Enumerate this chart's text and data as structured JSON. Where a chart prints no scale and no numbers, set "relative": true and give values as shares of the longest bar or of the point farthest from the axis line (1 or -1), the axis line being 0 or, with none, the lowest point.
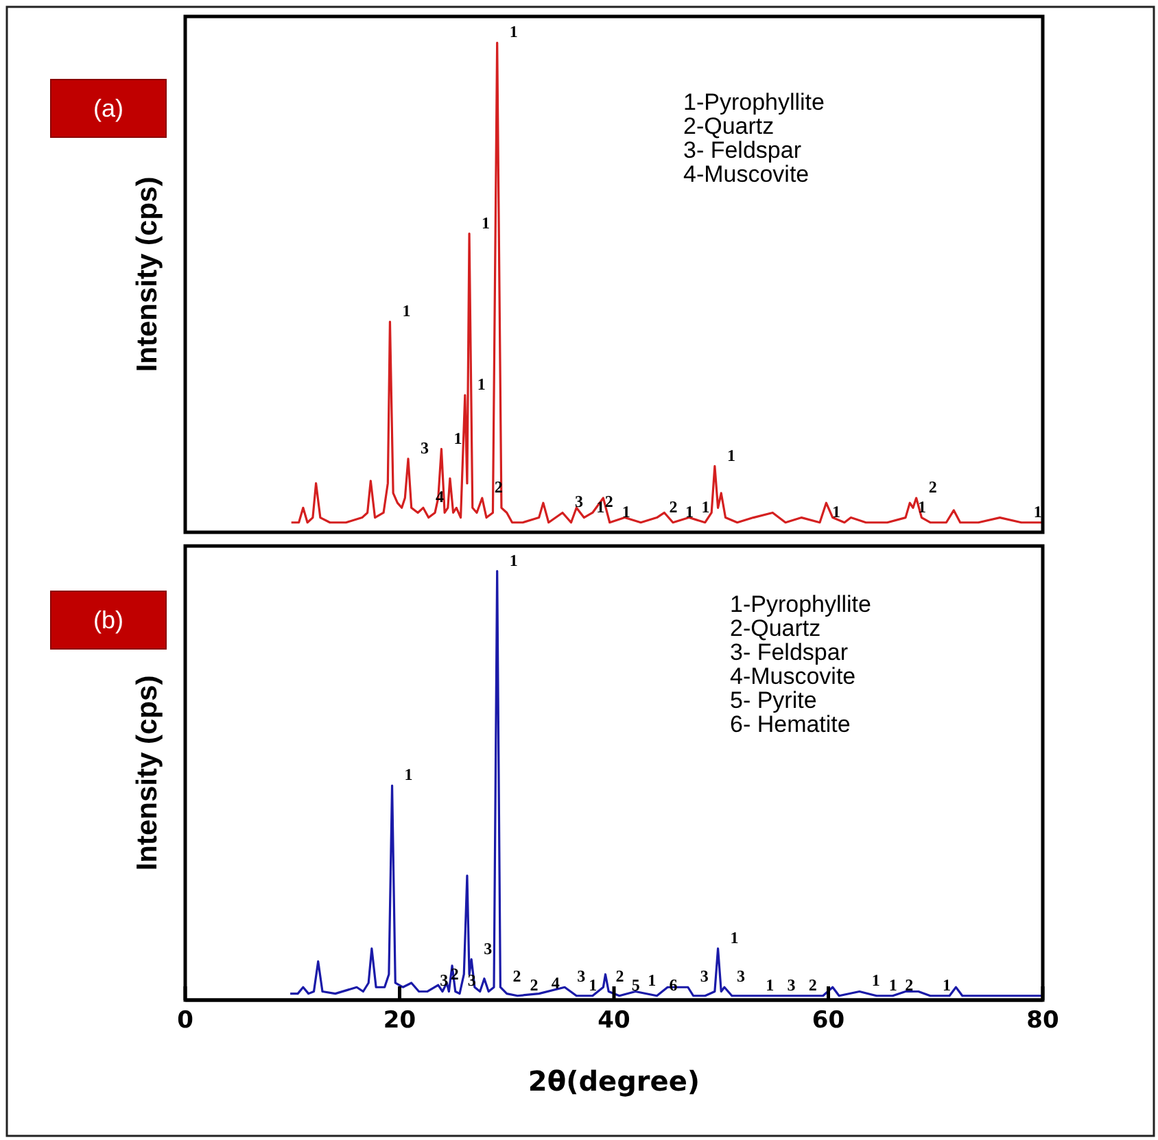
{
  "chart_data": [
    {
      "type": "line",
      "title": "(a)",
      "ylabel": "Intensity (cps)",
      "relative": true,
      "xlim": [
        0,
        80
      ],
      "tick_labels": false,
      "series": [
        {
          "color": "#d42020",
          "x": [
            9.9,
            10.6,
            11.0,
            11.4,
            11.9,
            12.2,
            12.6,
            13.5,
            15.0,
            16.5,
            17.0,
            17.3,
            17.7,
            18.5,
            18.9,
            19.1,
            19.4,
            19.8,
            20.2,
            20.5,
            20.8,
            21.1,
            21.7,
            22.2,
            22.7,
            23.3,
            23.6,
            23.9,
            24.2,
            24.5,
            24.7,
            25.0,
            25.3,
            25.7,
            26.1,
            26.3,
            26.5,
            26.8,
            27.2,
            27.7,
            28.1,
            28.7,
            29.1,
            29.5,
            30.0,
            30.5,
            31.5,
            33.0,
            33.4,
            33.9,
            35.2,
            36.0,
            36.5,
            37.2,
            38.0,
            39.0,
            39.6,
            41.0,
            42.5,
            44.0,
            44.7,
            45.5,
            47.0,
            48.5,
            49.1,
            49.4,
            49.7,
            50.0,
            50.4,
            51.5,
            53.0,
            54.8,
            56.0,
            57.5,
            59.2,
            59.8,
            60.4,
            61.5,
            62.1,
            63.5,
            65.5,
            67.2,
            67.6,
            67.9,
            68.2,
            68.7,
            69.5,
            71.0,
            71.7,
            72.3,
            74.0,
            76.0,
            78.0,
            80.0
          ],
          "values": [
            0.02,
            0.02,
            0.05,
            0.02,
            0.03,
            0.1,
            0.03,
            0.02,
            0.02,
            0.03,
            0.04,
            0.105,
            0.03,
            0.04,
            0.1,
            0.43,
            0.08,
            0.06,
            0.05,
            0.07,
            0.15,
            0.05,
            0.04,
            0.05,
            0.03,
            0.04,
            0.07,
            0.17,
            0.04,
            0.05,
            0.11,
            0.04,
            0.05,
            0.03,
            0.28,
            0.1,
            0.61,
            0.05,
            0.04,
            0.07,
            0.03,
            0.04,
            1.0,
            0.05,
            0.04,
            0.02,
            0.02,
            0.03,
            0.06,
            0.02,
            0.04,
            0.02,
            0.05,
            0.03,
            0.04,
            0.07,
            0.02,
            0.03,
            0.02,
            0.03,
            0.04,
            0.02,
            0.03,
            0.02,
            0.04,
            0.135,
            0.05,
            0.08,
            0.03,
            0.02,
            0.03,
            0.04,
            0.02,
            0.03,
            0.02,
            0.06,
            0.03,
            0.02,
            0.03,
            0.02,
            0.02,
            0.03,
            0.06,
            0.05,
            0.07,
            0.03,
            0.02,
            0.02,
            0.045,
            0.02,
            0.02,
            0.03,
            0.02,
            0.02
          ]
        }
      ],
      "annotations": [
        "1-Pyrophyllite",
        "2-Quartz",
        "3- Feldspar",
        "4-Muscovite",
        {
          "text": "1",
          "x": 29.1,
          "y": 1.0
        },
        {
          "text": "1",
          "x": 26.5,
          "y": 0.61
        },
        {
          "text": "1",
          "x": 19.1,
          "y": 0.43
        },
        {
          "text": "1",
          "x": 23.9,
          "y": 0.17
        },
        {
          "text": "3",
          "x": 20.8,
          "y": 0.15
        },
        {
          "text": "4",
          "x": 22.2,
          "y": 0.05
        },
        {
          "text": "1",
          "x": 26.1,
          "y": 0.28
        },
        {
          "text": "2",
          "x": 27.7,
          "y": 0.07
        },
        {
          "text": "3",
          "x": 35.2,
          "y": 0.04
        },
        {
          "text": "1",
          "x": 37.2,
          "y": 0.03
        },
        {
          "text": "2",
          "x": 38.0,
          "y": 0.04
        },
        {
          "text": "1",
          "x": 39.6,
          "y": 0.02
        },
        {
          "text": "2",
          "x": 44.0,
          "y": 0.03
        },
        {
          "text": "1",
          "x": 45.5,
          "y": 0.02
        },
        {
          "text": "1",
          "x": 47.0,
          "y": 0.03
        },
        {
          "text": "1",
          "x": 49.4,
          "y": 0.135
        },
        {
          "text": "1",
          "x": 59.2,
          "y": 0.02
        },
        {
          "text": "1",
          "x": 67.2,
          "y": 0.03
        },
        {
          "text": "2",
          "x": 68.2,
          "y": 0.07
        },
        {
          "text": "1",
          "x": 78.0,
          "y": 0.02
        }
      ]
    },
    {
      "type": "line",
      "title": "(b)",
      "ylabel": "Intensity (cps)",
      "xlabel": "2θ(degree)",
      "relative": true,
      "xlim": [
        0,
        80
      ],
      "xticks": [
        0,
        20,
        40,
        60,
        80
      ],
      "tick_labels": "x",
      "series": [
        {
          "color": "#1a1aa8",
          "x": [
            9.8,
            10.5,
            11.0,
            11.5,
            12.0,
            12.4,
            12.8,
            14.0,
            16.0,
            16.6,
            17.1,
            17.4,
            17.8,
            18.6,
            19.0,
            19.3,
            19.6,
            20.3,
            21.1,
            21.8,
            22.6,
            23.6,
            24.0,
            24.4,
            24.6,
            24.9,
            25.2,
            25.6,
            26.0,
            26.3,
            26.5,
            26.7,
            27.0,
            27.5,
            27.9,
            28.3,
            28.8,
            29.1,
            29.4,
            30.0,
            31.0,
            33.0,
            35.4,
            36.5,
            38.0,
            39.0,
            39.2,
            39.5,
            40.5,
            42.0,
            44.0,
            45.0,
            46.9,
            47.4,
            48.5,
            49.4,
            49.7,
            50.0,
            50.3,
            51.0,
            53.0,
            55.0,
            57.0,
            59.5,
            60.4,
            61.0,
            62.9,
            64.5,
            66.0,
            67.2,
            68.4,
            69.5,
            71.3,
            71.9,
            72.5,
            75.0,
            80.0
          ],
          "values": [
            0.015,
            0.015,
            0.03,
            0.015,
            0.02,
            0.09,
            0.02,
            0.015,
            0.03,
            0.02,
            0.04,
            0.12,
            0.03,
            0.03,
            0.06,
            0.5,
            0.04,
            0.03,
            0.04,
            0.02,
            0.02,
            0.035,
            0.02,
            0.04,
            0.02,
            0.08,
            0.02,
            0.015,
            0.06,
            0.29,
            0.06,
            0.095,
            0.03,
            0.02,
            0.05,
            0.02,
            0.03,
            1.0,
            0.03,
            0.015,
            0.01,
            0.015,
            0.03,
            0.01,
            0.01,
            0.03,
            0.06,
            0.02,
            0.01,
            0.02,
            0.01,
            0.03,
            0.03,
            0.01,
            0.01,
            0.02,
            0.12,
            0.02,
            0.03,
            0.01,
            0.01,
            0.01,
            0.01,
            0.01,
            0.03,
            0.01,
            0.02,
            0.01,
            0.01,
            0.02,
            0.02,
            0.01,
            0.01,
            0.03,
            0.01,
            0.01,
            0.01
          ]
        }
      ],
      "annotations": [
        "1-Pyrophyllite",
        "2-Quartz",
        "3- Feldspar",
        "4-Muscovite",
        "5- Pyrite",
        "6- Hematite",
        {
          "text": "1",
          "x": 29.1,
          "y": 1.0
        },
        {
          "text": "1",
          "x": 19.3,
          "y": 0.5
        },
        {
          "text": "3",
          "x": 26.7,
          "y": 0.095
        },
        {
          "text": "2",
          "x": 29.4,
          "y": 0.03
        },
        {
          "text": "3",
          "x": 22.6,
          "y": 0.02
        },
        {
          "text": "2",
          "x": 23.6,
          "y": 0.035
        },
        {
          "text": "3",
          "x": 25.2,
          "y": 0.02
        },
        {
          "text": "2",
          "x": 31.0,
          "y": 0.01
        },
        {
          "text": "4",
          "x": 33.0,
          "y": 0.015
        },
        {
          "text": "3",
          "x": 35.4,
          "y": 0.03
        },
        {
          "text": "1",
          "x": 36.5,
          "y": 0.01
        },
        {
          "text": "2",
          "x": 39.0,
          "y": 0.03
        },
        {
          "text": "5",
          "x": 40.5,
          "y": 0.01
        },
        {
          "text": "1",
          "x": 42.0,
          "y": 0.02
        },
        {
          "text": "6",
          "x": 44.0,
          "y": 0.01
        },
        {
          "text": "3",
          "x": 46.9,
          "y": 0.03
        },
        {
          "text": "1",
          "x": 49.7,
          "y": 0.12
        },
        {
          "text": "3",
          "x": 50.3,
          "y": 0.03
        },
        {
          "text": "1",
          "x": 53.0,
          "y": 0.01
        },
        {
          "text": "3",
          "x": 55.0,
          "y": 0.01
        },
        {
          "text": "2",
          "x": 57.0,
          "y": 0.01
        },
        {
          "text": "1",
          "x": 62.9,
          "y": 0.02
        },
        {
          "text": "1",
          "x": 64.5,
          "y": 0.01
        },
        {
          "text": "2",
          "x": 66.0,
          "y": 0.01
        },
        {
          "text": "1",
          "x": 69.5,
          "y": 0.01
        }
      ]
    }
  ]
}
